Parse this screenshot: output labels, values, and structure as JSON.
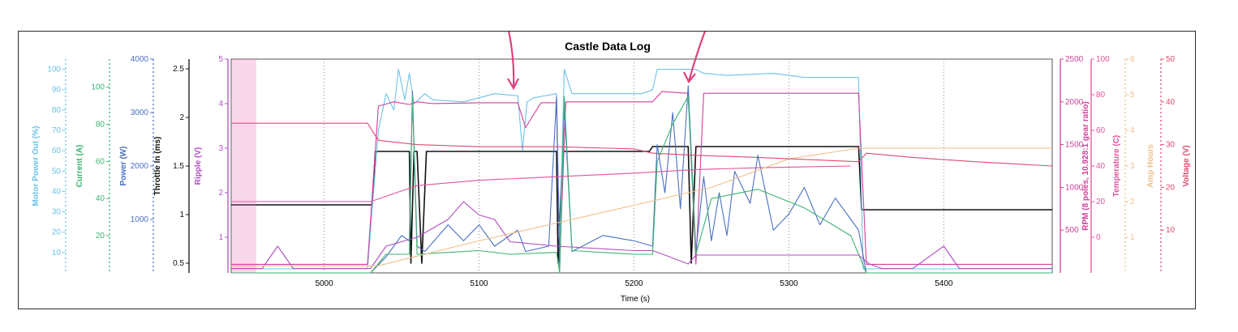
{
  "chart_data": {
    "type": "line",
    "title": "Castle Data Log",
    "xlabel": "Time (s)",
    "xlim": [
      4940,
      5470
    ],
    "x_ticks": [
      5000,
      5100,
      5200,
      5300,
      5400
    ],
    "left_axes": [
      {
        "key": "power_out",
        "label": "Motor Power Out (%)",
        "color": "#6cc3e6",
        "lim": [
          0,
          105
        ],
        "ticks": [
          10,
          20,
          30,
          40,
          50,
          60,
          70,
          80,
          90,
          100
        ]
      },
      {
        "key": "current",
        "label": "Current (A)",
        "color": "#3cb371",
        "lim": [
          0,
          115
        ],
        "ticks": [
          20,
          40,
          60,
          80,
          100
        ]
      },
      {
        "key": "power",
        "label": "Power (W)",
        "color": "#4a6fc2",
        "lim": [
          0,
          4000
        ],
        "ticks": [
          1000,
          2000,
          3000,
          4000
        ]
      },
      {
        "key": "throttle",
        "label": "Throttle In (ms)",
        "color": "#111111",
        "lim": [
          0.4,
          2.6
        ],
        "ticks": [
          0.5,
          1.0,
          1.5,
          2.0,
          2.5
        ]
      },
      {
        "key": "ripple",
        "label": "Ripple (V)",
        "color": "#b04fc2",
        "lim": [
          0.2,
          5
        ],
        "ticks": [
          1,
          2,
          3,
          4,
          5
        ]
      }
    ],
    "right_axes": [
      {
        "key": "rpm",
        "label": "RPM (8 poles, 10.928:1 gear ratio)",
        "color": "#d0409b",
        "lim": [
          0,
          2500
        ],
        "ticks": [
          500,
          1000,
          1500,
          2000,
          2500
        ]
      },
      {
        "key": "temperature",
        "label": "Temperature (C)",
        "color": "#e0559a",
        "lim": [
          -20,
          100
        ],
        "ticks": [
          0,
          20,
          40,
          60,
          80,
          100
        ]
      },
      {
        "key": "amp_hours",
        "label": "Amp Hours",
        "color": "#efbf8a",
        "lim": [
          0,
          6
        ],
        "ticks": [
          1,
          2,
          3,
          4,
          5,
          6
        ]
      },
      {
        "key": "voltage",
        "label": "Voltage (V)",
        "color": "#e04a6e",
        "lim": [
          0,
          50
        ],
        "ticks": [
          10,
          20,
          30,
          40,
          50
        ]
      }
    ],
    "series": [
      {
        "axis": "throttle",
        "color": "#111111",
        "x": [
          4940,
          5031,
          5033,
          5055,
          5056,
          5058,
          5060,
          5063,
          5066,
          5068,
          5070,
          5150,
          5151,
          5154,
          5156,
          5210,
          5212,
          5235,
          5237,
          5240,
          5243,
          5345,
          5347,
          5470
        ],
        "y": [
          1.1,
          1.1,
          1.65,
          1.65,
          0.5,
          1.65,
          1.65,
          0.5,
          1.65,
          1.65,
          1.65,
          1.65,
          0.5,
          1.65,
          1.65,
          1.65,
          1.7,
          1.7,
          0.5,
          1.7,
          1.7,
          1.7,
          1.05,
          1.05
        ]
      },
      {
        "axis": "power_out",
        "color": "#6cc3e6",
        "x": [
          4940,
          5028,
          5035,
          5040,
          5045,
          5048,
          5052,
          5055,
          5058,
          5065,
          5070,
          5090,
          5110,
          5125,
          5128,
          5131,
          5135,
          5150,
          5152,
          5155,
          5160,
          5180,
          5205,
          5212,
          5215,
          5220,
          5235,
          5240,
          5245,
          5260,
          5290,
          5310,
          5330,
          5345,
          5348,
          5470
        ],
        "y": [
          2,
          2,
          70,
          88,
          80,
          100,
          85,
          98,
          83,
          88,
          85,
          84,
          88,
          87,
          60,
          84,
          86,
          88,
          12,
          100,
          88,
          88,
          88,
          90,
          100,
          100,
          100,
          100,
          98,
          97,
          98,
          96,
          96,
          96,
          2,
          2
        ]
      },
      {
        "axis": "rpm",
        "color": "#d0409b",
        "x": [
          4940,
          5028,
          5035,
          5045,
          5055,
          5060,
          5070,
          5100,
          5125,
          5130,
          5140,
          5150,
          5152,
          5156,
          5170,
          5200,
          5212,
          5218,
          5235,
          5240,
          5245,
          5280,
          5330,
          5345,
          5350,
          5470
        ],
        "y": [
          100,
          100,
          1950,
          2000,
          1970,
          2000,
          1980,
          1990,
          1990,
          1700,
          1990,
          1990,
          100,
          2000,
          2000,
          2000,
          2000,
          2120,
          2100,
          100,
          2100,
          2100,
          2100,
          2100,
          100,
          100
        ]
      },
      {
        "axis": "power",
        "color": "#4a6fc2",
        "x": [
          4940,
          5030,
          5040,
          5050,
          5055,
          5057,
          5060,
          5065,
          5080,
          5090,
          5100,
          5110,
          5125,
          5130,
          5145,
          5150,
          5152,
          5155,
          5160,
          5180,
          5200,
          5212,
          5215,
          5220,
          5225,
          5230,
          5235,
          5240,
          5245,
          5250,
          5255,
          5260,
          5265,
          5275,
          5280,
          5290,
          5300,
          5310,
          5320,
          5330,
          5340,
          5345,
          5350,
          5470
        ],
        "y": [
          0,
          0,
          300,
          700,
          600,
          3400,
          500,
          400,
          900,
          600,
          900,
          500,
          800,
          400,
          500,
          3300,
          0,
          3100,
          400,
          700,
          600,
          500,
          2400,
          1500,
          3000,
          1200,
          3500,
          400,
          1800,
          600,
          1500,
          700,
          1900,
          1300,
          2200,
          800,
          1100,
          1600,
          900,
          1400,
          1000,
          800,
          0,
          0
        ]
      },
      {
        "axis": "current",
        "color": "#3cb371",
        "x": [
          4940,
          5030,
          5040,
          5055,
          5057,
          5060,
          5080,
          5100,
          5120,
          5150,
          5152,
          5155,
          5160,
          5200,
          5212,
          5215,
          5225,
          5235,
          5240,
          5250,
          5280,
          5310,
          5340,
          5345,
          5350,
          5470
        ],
        "y": [
          0,
          0,
          10,
          10,
          95,
          10,
          11,
          12,
          10,
          11,
          0,
          95,
          12,
          10,
          10,
          60,
          80,
          95,
          10,
          40,
          45,
          35,
          20,
          10,
          0,
          0
        ]
      },
      {
        "axis": "ripple",
        "color": "#b04fc2",
        "x": [
          4940,
          4950,
          4960,
          4970,
          4980,
          4990,
          5000,
          5030,
          5040,
          5060,
          5080,
          5090,
          5100,
          5110,
          5120,
          5150,
          5200,
          5212,
          5220,
          5235,
          5240,
          5290,
          5345,
          5352,
          5360,
          5380,
          5400,
          5410,
          5420,
          5470
        ],
        "y": [
          0.3,
          0.3,
          0.3,
          0.8,
          0.3,
          0.3,
          0.3,
          0.3,
          0.8,
          1.0,
          1.4,
          1.8,
          1.5,
          1.4,
          0.9,
          0.8,
          0.7,
          0.7,
          0.6,
          0.4,
          0.6,
          0.6,
          0.6,
          0.4,
          0.3,
          0.3,
          0.8,
          0.3,
          0.3,
          0.3
        ]
      },
      {
        "axis": "temperature",
        "color": "#e0559a",
        "x": [
          4940,
          5030,
          5060,
          5100,
          5150,
          5200,
          5240,
          5280,
          5340
        ],
        "y": [
          20,
          20,
          29,
          32,
          34,
          36,
          38,
          39,
          40
        ]
      },
      {
        "axis": "amp_hours",
        "color": "#efbf8a",
        "x": [
          4940,
          5035,
          5100,
          5150,
          5200,
          5250,
          5300,
          5345,
          5470
        ],
        "y": [
          0.2,
          0.2,
          0.9,
          1.4,
          1.9,
          2.4,
          3.2,
          3.5,
          3.5
        ]
      },
      {
        "axis": "voltage",
        "color": "#e04a6e",
        "x": [
          4940,
          5028,
          5035,
          5060,
          5100,
          5150,
          5200,
          5212,
          5240,
          5280,
          5345,
          5350,
          5380,
          5420,
          5470
        ],
        "y": [
          35,
          35,
          31,
          30,
          29.5,
          29.5,
          29,
          28,
          27.5,
          27,
          26,
          28,
          27,
          26,
          25
        ]
      }
    ]
  }
}
